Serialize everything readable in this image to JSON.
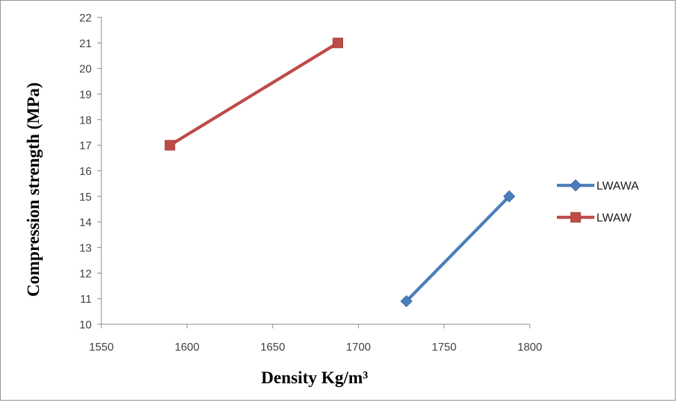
{
  "chart_data": {
    "type": "scatter",
    "xlabel": "Density Kg/m³",
    "ylabel": "Compression strength (MPa)",
    "xlim": [
      1550,
      1800
    ],
    "ylim": [
      10,
      22
    ],
    "xticks": [
      1550,
      1600,
      1650,
      1700,
      1750,
      1800
    ],
    "yticks": [
      10,
      11,
      12,
      13,
      14,
      15,
      16,
      17,
      18,
      19,
      20,
      21,
      22
    ],
    "grid": false,
    "legend_position": "right",
    "series": [
      {
        "name": "LWAWA",
        "color": "#4a7ebb",
        "marker": "diamond",
        "x": [
          1728,
          1788
        ],
        "y": [
          10.9,
          15.0
        ]
      },
      {
        "name": "LWAW",
        "color": "#be4b48",
        "marker": "square",
        "x": [
          1590,
          1688
        ],
        "y": [
          17.0,
          21.0
        ]
      }
    ]
  }
}
